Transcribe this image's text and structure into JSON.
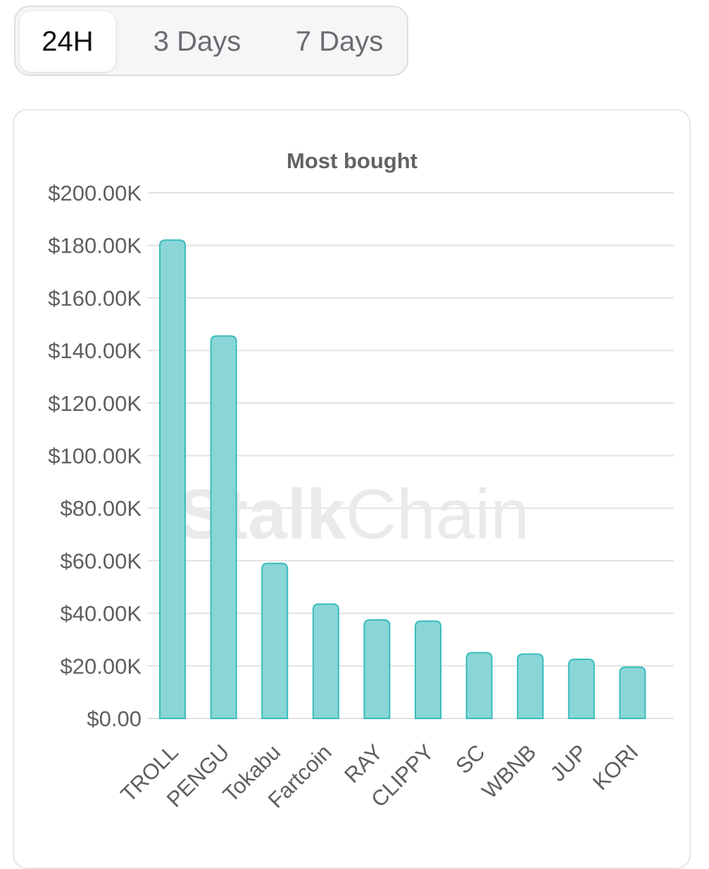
{
  "tabs": {
    "items": [
      {
        "label": "24H",
        "active": true
      },
      {
        "label": "3 Days",
        "active": false
      },
      {
        "label": "7 Days",
        "active": false
      }
    ]
  },
  "watermark": {
    "bold_part": "Stalk",
    "light_part": "Chain"
  },
  "colors": {
    "bar_fill": "#8ad6d6",
    "bar_stroke": "#39bcbc",
    "grid": "#e2e2e2",
    "text": "#5f5f5f"
  },
  "chart_data": {
    "type": "bar",
    "title": "Most bought",
    "xlabel": "",
    "ylabel": "",
    "categories": [
      "TROLL",
      "PENGU",
      "Tokabu",
      "Fartcoin",
      "RAY",
      "CLIPPY",
      "SC",
      "WBNB",
      "JUP",
      "KORI"
    ],
    "values": [
      182000,
      145500,
      59000,
      43500,
      37500,
      37000,
      25000,
      24500,
      22500,
      19500
    ],
    "ylim": [
      0,
      200000
    ],
    "yticks": [
      0,
      20000,
      40000,
      60000,
      80000,
      100000,
      120000,
      140000,
      160000,
      180000,
      200000
    ],
    "ytick_labels": [
      "$0.00",
      "$20.00K",
      "$40.00K",
      "$60.00K",
      "$80.00K",
      "$100.00K",
      "$120.00K",
      "$140.00K",
      "$160.00K",
      "$180.00K",
      "$200.00K"
    ],
    "grid": true,
    "legend": "none"
  }
}
